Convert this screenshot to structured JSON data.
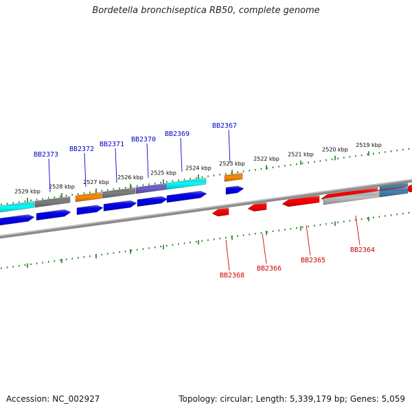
{
  "title": "Bordetella bronchiseptica RB50, complete genome",
  "footer": {
    "accession": "Accession: NC_002927",
    "summary": "Topology: circular; Length: 5,339,179 bp; Genes: 5,059"
  },
  "colors": {
    "forward_label": "#0000cc",
    "reverse_label": "#cc0000",
    "tick": "#1e7d1e",
    "backbone": "#8a8a8a"
  },
  "scale": {
    "unit": "kbp",
    "labels": [
      "2529 kbp",
      "2528 kbp",
      "2527 kbp",
      "2526 kbp",
      "2525 kbp",
      "2524 kbp",
      "2523 kbp",
      "2522 kbp",
      "2521 kbp",
      "2520 kbp",
      "2519 kbp"
    ]
  },
  "genes_forward": [
    {
      "label": "BB2373",
      "strand": "+",
      "cog_color": "#00ffff"
    },
    {
      "label": "",
      "strand": "+",
      "cog_color": "#808080"
    },
    {
      "label": "BB2372",
      "strand": "+",
      "cog_color": "#ff8c00"
    },
    {
      "label": "BB2371",
      "strand": "+",
      "cog_color": "#808080"
    },
    {
      "label": "BB2370",
      "strand": "+",
      "cog_color": "#7060d0"
    },
    {
      "label": "BB2369",
      "strand": "+",
      "cog_color": "#00ffff"
    },
    {
      "label": "BB2367",
      "strand": "+",
      "cog_color": "#ff8c00"
    }
  ],
  "genes_reverse": [
    {
      "label": "BB2368",
      "strand": "-"
    },
    {
      "label": "BB2366",
      "strand": "-"
    },
    {
      "label": "BB2365",
      "strand": "-"
    },
    {
      "label": "BB2364",
      "strand": "-",
      "cog_color": "#c0c0c0"
    },
    {
      "label": "",
      "strand": "-",
      "cog_color": "#4682b4"
    }
  ]
}
